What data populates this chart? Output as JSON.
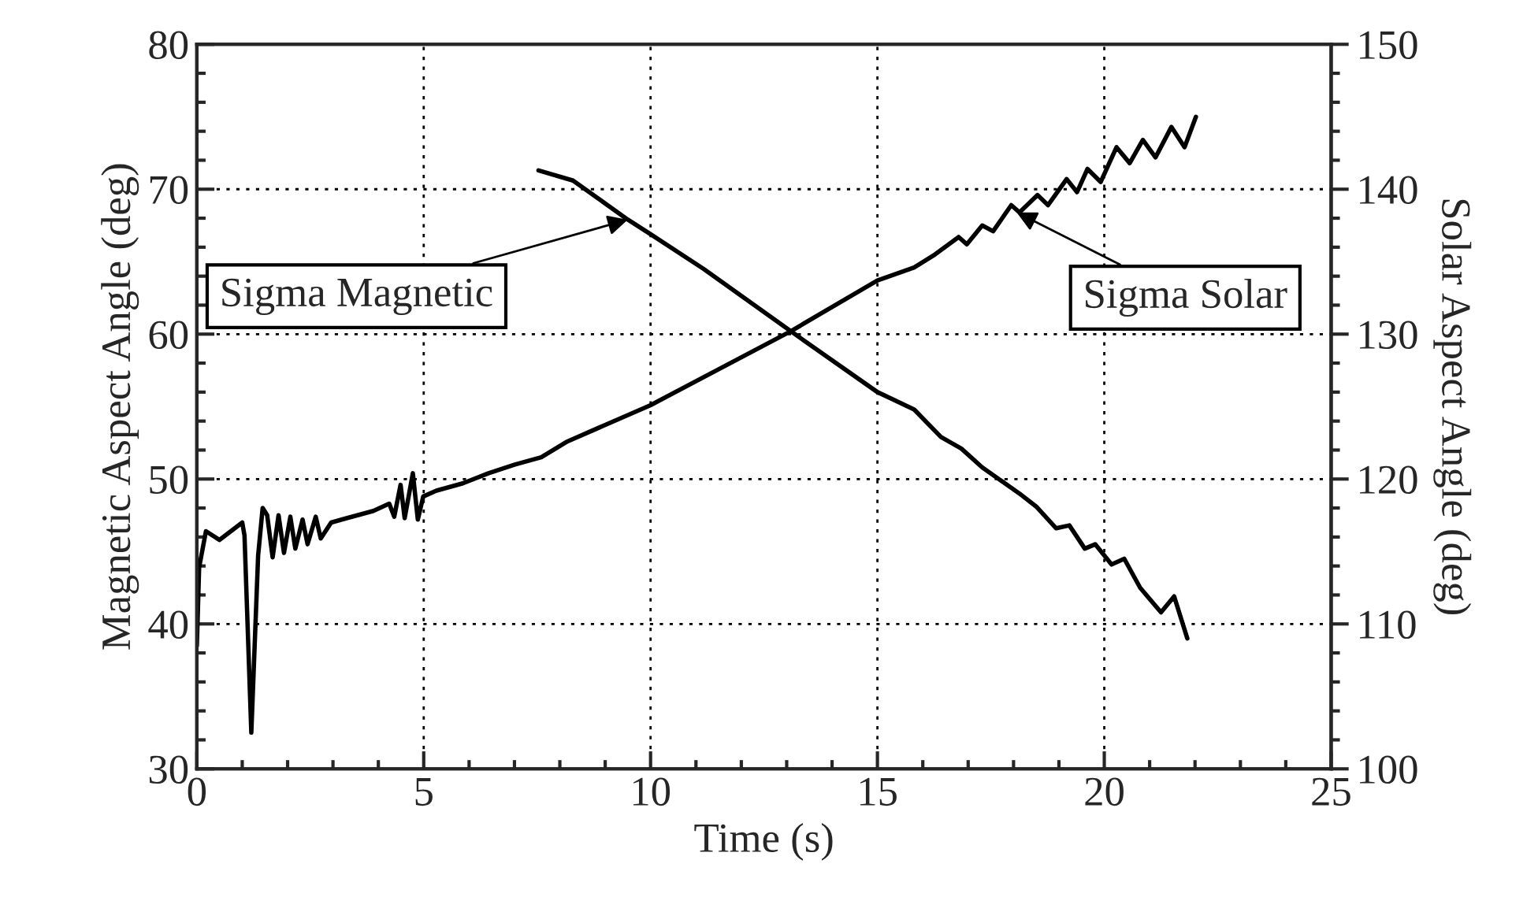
{
  "chart_data": {
    "type": "line",
    "xlabel": "Time (s)",
    "ylabel": "Magnetic Aspect Angle (deg)",
    "y2label": "Solar Aspect Angle (deg)",
    "xlim": [
      0,
      25
    ],
    "xticks": [
      0,
      5,
      10,
      15,
      20,
      25
    ],
    "ylim": [
      30,
      80
    ],
    "yticks": [
      30,
      40,
      50,
      60,
      70,
      80
    ],
    "y2lim": [
      100,
      150
    ],
    "y2ticks": [
      100,
      110,
      120,
      130,
      140,
      150
    ],
    "grid": true,
    "line_style": "solid",
    "marker": "none",
    "series": [
      {
        "color": "#000000",
        "x": [
          7.53,
          8.29,
          9.5,
          10,
          11.17,
          13.09,
          15.0,
          15.81,
          16.4,
          16.85,
          17.31,
          18.13,
          18.5,
          18.94,
          19.23,
          19.57,
          19.8,
          20.16,
          20.44,
          20.79,
          21.25,
          21.54,
          21.83
        ],
        "values": [
          71.3,
          70.6,
          67.9,
          66.9,
          64.5,
          60.2,
          56.0,
          54.8,
          52.9,
          52.1,
          50.8,
          49.0,
          48.1,
          46.6,
          46.8,
          45.2,
          45.5,
          44.1,
          44.5,
          42.5,
          40.8,
          41.9,
          39.0
        ]
      },
      {
        "color": "#000000",
        "axis": "y2",
        "x": [
          0,
          0.05,
          0.2,
          0.5,
          1.0,
          1.05,
          1.2,
          1.35,
          1.45,
          1.55,
          1.67,
          1.8,
          1.92,
          2.06,
          2.17,
          2.33,
          2.44,
          2.62,
          2.73,
          2.96,
          3.19,
          3.54,
          3.89,
          4.24,
          4.35,
          4.49,
          4.58,
          4.76,
          4.87,
          4.99,
          5.28,
          5.86,
          6.43,
          7.01,
          7.59,
          8.17,
          10,
          13.09,
          15.0,
          15.81,
          16.27,
          16.79,
          16.97,
          17.31,
          17.55,
          17.95,
          18.13,
          18.53,
          18.76,
          19.17,
          19.4,
          19.63,
          19.92,
          20.27,
          20.56,
          20.85,
          21.13,
          21.48,
          21.77,
          22.02
        ],
        "values": [
          108.5,
          113.9,
          116.4,
          115.8,
          117.0,
          116.1,
          102.5,
          114.7,
          118.0,
          117.5,
          114.6,
          117.5,
          114.9,
          117.4,
          115.2,
          117.2,
          115.5,
          117.4,
          115.9,
          117.0,
          117.2,
          117.5,
          117.8,
          118.3,
          117.4,
          119.6,
          117.3,
          120.4,
          117.2,
          118.8,
          119.2,
          119.7,
          120.4,
          121.0,
          121.5,
          122.6,
          125.1,
          130.2,
          133.7,
          134.6,
          135.5,
          136.7,
          136.2,
          137.5,
          137.1,
          138.9,
          138.4,
          139.6,
          138.9,
          140.7,
          139.8,
          141.4,
          140.5,
          142.9,
          141.8,
          143.4,
          142.2,
          144.3,
          142.9,
          145.0
        ]
      }
    ],
    "annotations": [
      {
        "text": "Sigma Magnetic",
        "x": 9.5,
        "y": 67.9
      },
      {
        "text": "Sigma Solar",
        "x": 18.07,
        "y": 68.4
      }
    ]
  }
}
